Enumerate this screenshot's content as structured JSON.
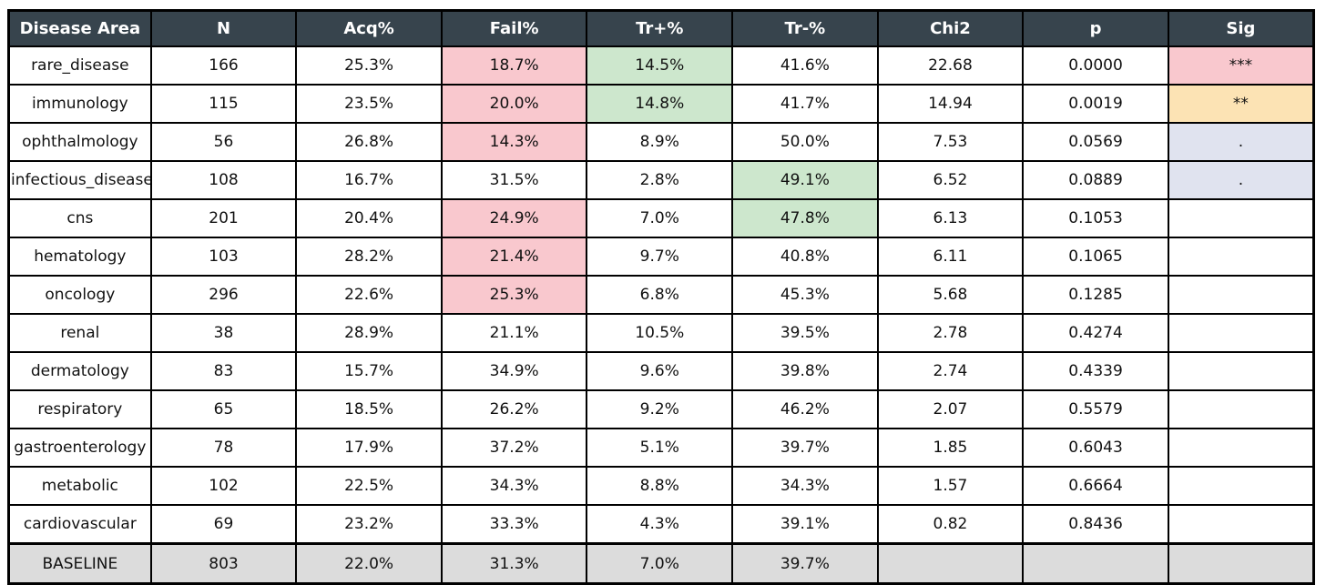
{
  "title": "Disease area statistics table",
  "colors": {
    "header_bg": "#37444d",
    "header_text": "#ffffff",
    "pink": "#f9c8ce",
    "green": "#cde7cd",
    "orange": "#fce3b4",
    "lavender": "#e0e3ef",
    "baseline_bg": "#dcdcdc",
    "grid_border": "#000000"
  },
  "chart_data": {
    "type": "table",
    "columns": [
      "Disease Area",
      "N",
      "Acq%",
      "Fail%",
      "Tr+%",
      "Tr-%",
      "Chi2",
      "p",
      "Sig"
    ],
    "rows": [
      {
        "baseline": false,
        "cells": [
          {
            "text": "rare_disease"
          },
          {
            "text": "166"
          },
          {
            "text": "25.3%"
          },
          {
            "text": "18.7%",
            "bg": "pink"
          },
          {
            "text": "14.5%",
            "bg": "green"
          },
          {
            "text": "41.6%"
          },
          {
            "text": "22.68"
          },
          {
            "text": "0.0000"
          },
          {
            "text": "***",
            "bg": "pink"
          }
        ]
      },
      {
        "baseline": false,
        "cells": [
          {
            "text": "immunology"
          },
          {
            "text": "115"
          },
          {
            "text": "23.5%"
          },
          {
            "text": "20.0%",
            "bg": "pink"
          },
          {
            "text": "14.8%",
            "bg": "green"
          },
          {
            "text": "41.7%"
          },
          {
            "text": "14.94"
          },
          {
            "text": "0.0019"
          },
          {
            "text": "**",
            "bg": "orange"
          }
        ]
      },
      {
        "baseline": false,
        "cells": [
          {
            "text": "ophthalmology"
          },
          {
            "text": "56"
          },
          {
            "text": "26.8%"
          },
          {
            "text": "14.3%",
            "bg": "pink"
          },
          {
            "text": "8.9%"
          },
          {
            "text": "50.0%"
          },
          {
            "text": "7.53"
          },
          {
            "text": "0.0569"
          },
          {
            "text": ".",
            "bg": "lavender"
          }
        ]
      },
      {
        "baseline": false,
        "cells": [
          {
            "text": "infectious_disease"
          },
          {
            "text": "108"
          },
          {
            "text": "16.7%"
          },
          {
            "text": "31.5%"
          },
          {
            "text": "2.8%"
          },
          {
            "text": "49.1%",
            "bg": "green"
          },
          {
            "text": "6.52"
          },
          {
            "text": "0.0889"
          },
          {
            "text": ".",
            "bg": "lavender"
          }
        ]
      },
      {
        "baseline": false,
        "cells": [
          {
            "text": "cns"
          },
          {
            "text": "201"
          },
          {
            "text": "20.4%"
          },
          {
            "text": "24.9%",
            "bg": "pink"
          },
          {
            "text": "7.0%"
          },
          {
            "text": "47.8%",
            "bg": "green"
          },
          {
            "text": "6.13"
          },
          {
            "text": "0.1053"
          },
          {
            "text": ""
          }
        ]
      },
      {
        "baseline": false,
        "cells": [
          {
            "text": "hematology"
          },
          {
            "text": "103"
          },
          {
            "text": "28.2%"
          },
          {
            "text": "21.4%",
            "bg": "pink"
          },
          {
            "text": "9.7%"
          },
          {
            "text": "40.8%"
          },
          {
            "text": "6.11"
          },
          {
            "text": "0.1065"
          },
          {
            "text": ""
          }
        ]
      },
      {
        "baseline": false,
        "cells": [
          {
            "text": "oncology"
          },
          {
            "text": "296"
          },
          {
            "text": "22.6%"
          },
          {
            "text": "25.3%",
            "bg": "pink"
          },
          {
            "text": "6.8%"
          },
          {
            "text": "45.3%"
          },
          {
            "text": "5.68"
          },
          {
            "text": "0.1285"
          },
          {
            "text": ""
          }
        ]
      },
      {
        "baseline": false,
        "cells": [
          {
            "text": "renal"
          },
          {
            "text": "38"
          },
          {
            "text": "28.9%"
          },
          {
            "text": "21.1%"
          },
          {
            "text": "10.5%"
          },
          {
            "text": "39.5%"
          },
          {
            "text": "2.78"
          },
          {
            "text": "0.4274"
          },
          {
            "text": ""
          }
        ]
      },
      {
        "baseline": false,
        "cells": [
          {
            "text": "dermatology"
          },
          {
            "text": "83"
          },
          {
            "text": "15.7%"
          },
          {
            "text": "34.9%"
          },
          {
            "text": "9.6%"
          },
          {
            "text": "39.8%"
          },
          {
            "text": "2.74"
          },
          {
            "text": "0.4339"
          },
          {
            "text": ""
          }
        ]
      },
      {
        "baseline": false,
        "cells": [
          {
            "text": "respiratory"
          },
          {
            "text": "65"
          },
          {
            "text": "18.5%"
          },
          {
            "text": "26.2%"
          },
          {
            "text": "9.2%"
          },
          {
            "text": "46.2%"
          },
          {
            "text": "2.07"
          },
          {
            "text": "0.5579"
          },
          {
            "text": ""
          }
        ]
      },
      {
        "baseline": false,
        "cells": [
          {
            "text": "gastroenterology"
          },
          {
            "text": "78"
          },
          {
            "text": "17.9%"
          },
          {
            "text": "37.2%"
          },
          {
            "text": "5.1%"
          },
          {
            "text": "39.7%"
          },
          {
            "text": "1.85"
          },
          {
            "text": "0.6043"
          },
          {
            "text": ""
          }
        ]
      },
      {
        "baseline": false,
        "cells": [
          {
            "text": "metabolic"
          },
          {
            "text": "102"
          },
          {
            "text": "22.5%"
          },
          {
            "text": "34.3%"
          },
          {
            "text": "8.8%"
          },
          {
            "text": "34.3%"
          },
          {
            "text": "1.57"
          },
          {
            "text": "0.6664"
          },
          {
            "text": ""
          }
        ]
      },
      {
        "baseline": false,
        "cells": [
          {
            "text": "cardiovascular"
          },
          {
            "text": "69"
          },
          {
            "text": "23.2%"
          },
          {
            "text": "33.3%"
          },
          {
            "text": "4.3%"
          },
          {
            "text": "39.1%"
          },
          {
            "text": "0.82"
          },
          {
            "text": "0.8436"
          },
          {
            "text": ""
          }
        ]
      },
      {
        "baseline": true,
        "cells": [
          {
            "text": "BASELINE"
          },
          {
            "text": "803"
          },
          {
            "text": "22.0%"
          },
          {
            "text": "31.3%"
          },
          {
            "text": "7.0%"
          },
          {
            "text": "39.7%"
          },
          {
            "text": ""
          },
          {
            "text": ""
          },
          {
            "text": ""
          }
        ]
      }
    ]
  }
}
